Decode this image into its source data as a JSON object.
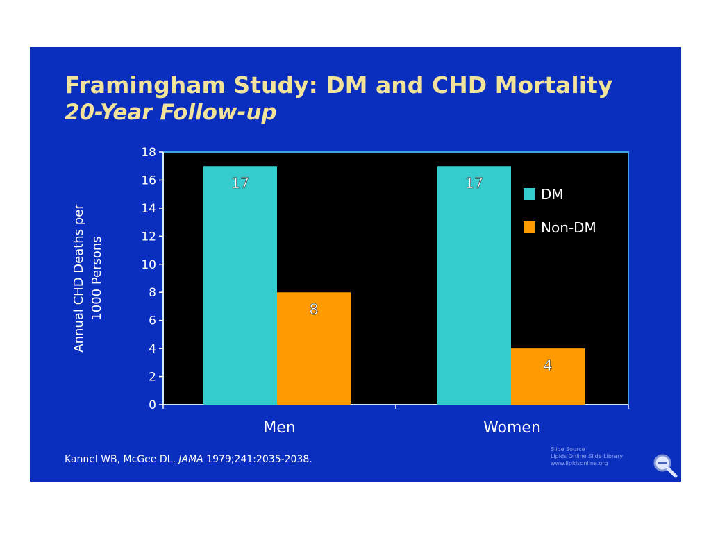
{
  "slide": {
    "title": "Framingham Study:  DM and CHD Mortality",
    "subtitle": "20-Year Follow-up",
    "citation": {
      "authors": "Kannel WB, McGee DL.",
      "journal": "JAMA",
      "details": "1979;241:2035-2038."
    },
    "source": {
      "line1": "Slide Source",
      "line2": "Lipids Online Slide Library",
      "line3": "www.lipidsonline.org"
    },
    "colors": {
      "background": "#0a2fbf",
      "title": "#f2e39a",
      "plot_area": "#000000"
    },
    "icons": [
      "magnifier-icon"
    ]
  },
  "chart_data": {
    "type": "bar",
    "title": "Framingham Study:  DM and CHD Mortality",
    "subtitle": "20-Year Follow-up",
    "categories": [
      "Men",
      "Women"
    ],
    "series": [
      {
        "name": "DM",
        "values": [
          17,
          17
        ],
        "color": "#34cccc"
      },
      {
        "name": "Non-DM",
        "values": [
          8,
          4
        ],
        "color": "#ff9a00"
      }
    ],
    "ylabel": [
      "Annual CHD Deaths per",
      "1000 Persons"
    ],
    "xlabel": "",
    "ylim": [
      0,
      18
    ],
    "yticks": [
      0,
      2,
      4,
      6,
      8,
      10,
      12,
      14,
      16,
      18
    ],
    "data_labels": [
      [
        "17",
        "17"
      ],
      [
        "8",
        "4"
      ]
    ],
    "legend": "top-right",
    "grid": false
  }
}
